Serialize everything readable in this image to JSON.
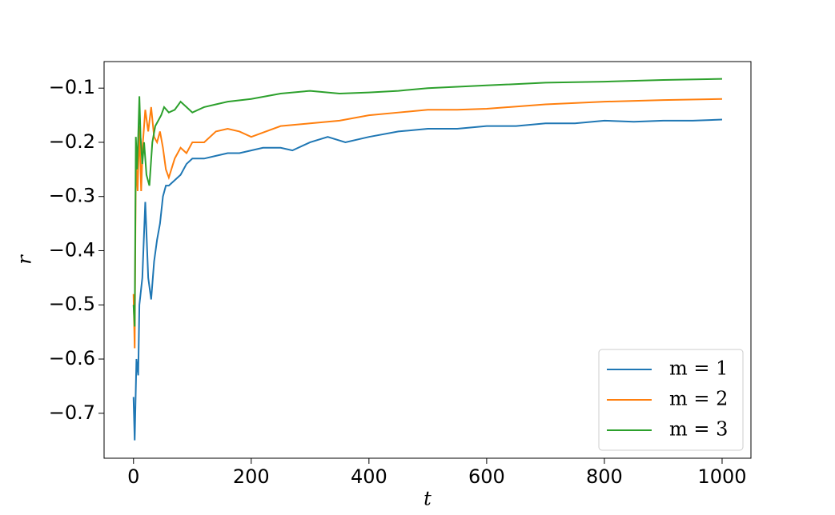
{
  "chart_data": {
    "type": "line",
    "x_label": "t",
    "y_label": "r",
    "xlim": [
      -50,
      1049
    ],
    "ylim": [
      -0.783,
      -0.051
    ],
    "xticks": [
      0,
      200,
      400,
      600,
      800,
      1000
    ],
    "yticks": [
      {
        "value": -0.1,
        "label": "−0.1"
      },
      {
        "value": -0.2,
        "label": "−0.2"
      },
      {
        "value": -0.3,
        "label": "−0.3"
      },
      {
        "value": -0.4,
        "label": "−0.4"
      },
      {
        "value": -0.5,
        "label": "−0.5"
      },
      {
        "value": -0.6,
        "label": "−0.6"
      },
      {
        "value": -0.7,
        "label": "−0.7"
      }
    ],
    "legend": "lower right",
    "series": [
      {
        "name": "m = 1",
        "color": "#1f77b4",
        "x": [
          0,
          2,
          5,
          8,
          10,
          15,
          20,
          25,
          30,
          35,
          40,
          45,
          50,
          55,
          60,
          70,
          80,
          90,
          100,
          120,
          140,
          160,
          180,
          200,
          220,
          250,
          270,
          300,
          330,
          360,
          400,
          450,
          500,
          550,
          600,
          650,
          700,
          750,
          800,
          850,
          900,
          950,
          1000
        ],
        "values": [
          -0.67,
          -0.75,
          -0.6,
          -0.63,
          -0.5,
          -0.45,
          -0.31,
          -0.45,
          -0.49,
          -0.42,
          -0.38,
          -0.35,
          -0.3,
          -0.28,
          -0.28,
          -0.27,
          -0.26,
          -0.24,
          -0.23,
          -0.23,
          -0.225,
          -0.22,
          -0.22,
          -0.215,
          -0.21,
          -0.21,
          -0.215,
          -0.2,
          -0.19,
          -0.2,
          -0.19,
          -0.18,
          -0.175,
          -0.175,
          -0.17,
          -0.17,
          -0.165,
          -0.165,
          -0.16,
          -0.162,
          -0.16,
          -0.16,
          -0.158
        ]
      },
      {
        "name": "m = 2",
        "color": "#ff7f0e",
        "x": [
          0,
          2,
          4,
          7,
          10,
          13,
          16,
          20,
          25,
          30,
          35,
          40,
          45,
          50,
          55,
          60,
          70,
          80,
          90,
          100,
          120,
          140,
          160,
          180,
          200,
          250,
          300,
          350,
          400,
          450,
          500,
          550,
          600,
          700,
          800,
          900,
          1000
        ],
        "values": [
          -0.48,
          -0.58,
          -0.23,
          -0.29,
          -0.17,
          -0.29,
          -0.2,
          -0.14,
          -0.18,
          -0.135,
          -0.19,
          -0.2,
          -0.18,
          -0.21,
          -0.25,
          -0.265,
          -0.23,
          -0.21,
          -0.22,
          -0.2,
          -0.2,
          -0.18,
          -0.175,
          -0.18,
          -0.19,
          -0.17,
          -0.165,
          -0.16,
          -0.15,
          -0.145,
          -0.14,
          -0.14,
          -0.138,
          -0.13,
          -0.125,
          -0.122,
          -0.12
        ]
      },
      {
        "name": "m = 3",
        "color": "#2ca02c",
        "x": [
          0,
          2,
          4,
          6,
          8,
          10,
          12,
          15,
          18,
          22,
          27,
          32,
          37,
          42,
          47,
          52,
          60,
          70,
          80,
          90,
          100,
          120,
          140,
          160,
          200,
          250,
          300,
          350,
          400,
          450,
          500,
          600,
          700,
          800,
          900,
          1000
        ],
        "values": [
          -0.5,
          -0.54,
          -0.19,
          -0.25,
          -0.19,
          -0.115,
          -0.19,
          -0.24,
          -0.2,
          -0.26,
          -0.28,
          -0.2,
          -0.17,
          -0.16,
          -0.15,
          -0.135,
          -0.145,
          -0.14,
          -0.125,
          -0.135,
          -0.145,
          -0.135,
          -0.13,
          -0.125,
          -0.12,
          -0.11,
          -0.105,
          -0.11,
          -0.108,
          -0.105,
          -0.1,
          -0.095,
          -0.09,
          -0.088,
          -0.085,
          -0.083
        ]
      }
    ]
  }
}
